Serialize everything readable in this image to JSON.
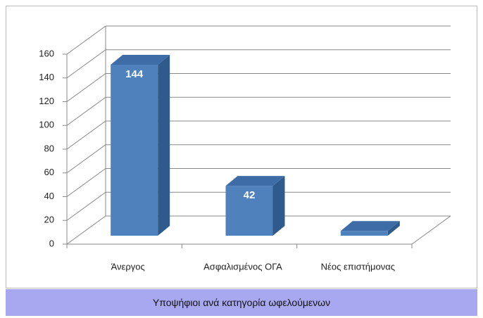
{
  "chart_data": {
    "type": "bar3d",
    "categories": [
      "Άνεργος",
      "Ασφαλισμένος ΟΓΑ",
      "Νέος επιστήμονας"
    ],
    "values": [
      144,
      42,
      4
    ],
    "color": "#4f81bd",
    "ylim": [
      0,
      160
    ],
    "yticks": [
      0,
      20,
      40,
      60,
      80,
      100,
      120,
      140,
      160
    ],
    "grid": true
  },
  "caption": "Υποψήφιοι ανά κατηγορία ωφελούμενων"
}
